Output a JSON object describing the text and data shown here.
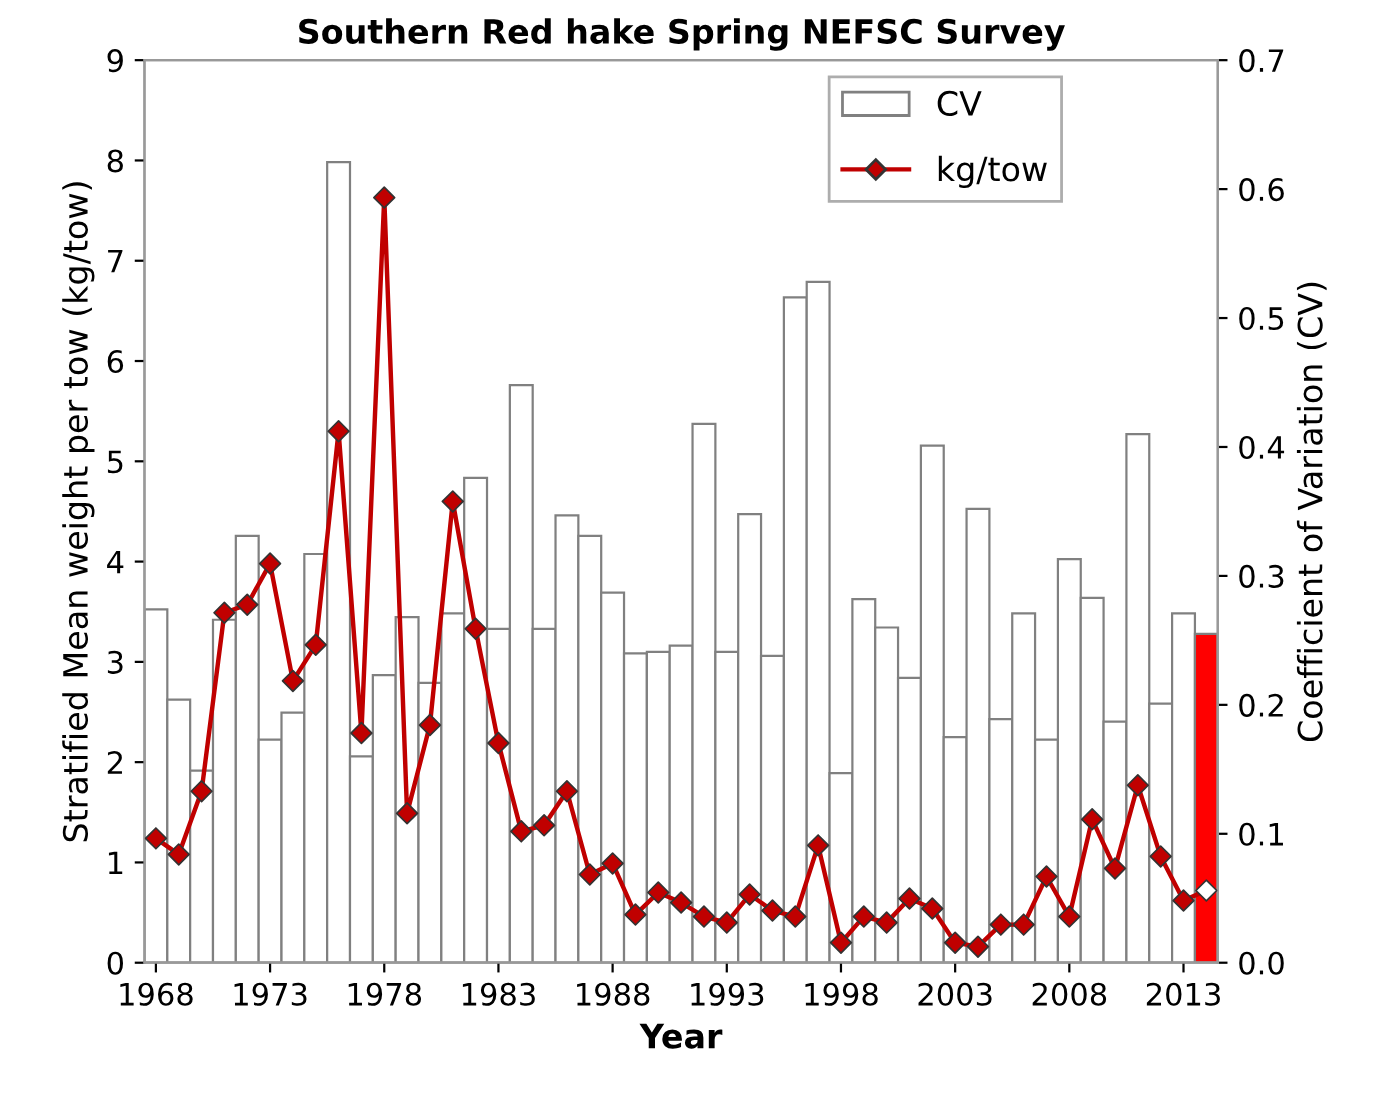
{
  "chart_data": {
    "type": "bar",
    "title": "Southern Red hake Spring NEFSC Survey",
    "xlabel": "Year",
    "ylabel": "Stratified Mean weight per tow (kg/tow)",
    "y2label": "Coefficient of Variation (CV)",
    "x": [
      1968,
      1969,
      1970,
      1971,
      1972,
      1973,
      1974,
      1975,
      1976,
      1977,
      1978,
      1979,
      1980,
      1981,
      1982,
      1983,
      1984,
      1985,
      1986,
      1987,
      1988,
      1989,
      1990,
      1991,
      1992,
      1993,
      1994,
      1995,
      1996,
      1997,
      1998,
      1999,
      2000,
      2001,
      2002,
      2003,
      2004,
      2005,
      2006,
      2007,
      2008,
      2009,
      2010,
      2011,
      2012,
      2013,
      2014
    ],
    "xlim": [
      1967.5,
      2014.5
    ],
    "xticks": [
      1968,
      1973,
      1978,
      1983,
      1988,
      1993,
      1998,
      2003,
      2008,
      2013
    ],
    "ylim": [
      0,
      9
    ],
    "yticks": [
      0,
      1,
      2,
      3,
      4,
      5,
      6,
      7,
      8,
      9
    ],
    "y2lim": [
      0,
      0.7
    ],
    "y2ticks": [
      {
        "value": 0,
        "label": "0.0"
      },
      0.1,
      0.2,
      0.3,
      0.4,
      0.5,
      0.6,
      0.7
    ],
    "series": [
      {
        "name": "CV",
        "axis": "y2",
        "color": "#ffffff",
        "colors": [
          "#ffffff",
          "#ffffff",
          "#ffffff",
          "#ffffff",
          "#ffffff",
          "#ffffff",
          "#ffffff",
          "#ffffff",
          "#ffffff",
          "#ffffff",
          "#ffffff",
          "#ffffff",
          "#ffffff",
          "#ffffff",
          "#ffffff",
          "#ffffff",
          "#ffffff",
          "#ffffff",
          "#ffffff",
          "#ffffff",
          "#ffffff",
          "#ffffff",
          "#ffffff",
          "#ffffff",
          "#ffffff",
          "#ffffff",
          "#ffffff",
          "#ffffff",
          "#ffffff",
          "#ffffff",
          "#ffffff",
          "#ffffff",
          "#ffffff",
          "#ffffff",
          "#ffffff",
          "#ffffff",
          "#ffffff",
          "#ffffff",
          "#ffffff",
          "#ffffff",
          "#ffffff",
          "#ffffff",
          "#ffffff",
          "#ffffff",
          "#ffffff",
          "#ffffff",
          "#ff0000"
        ],
        "values": [
          0.274,
          0.204,
          0.149,
          0.266,
          0.331,
          0.173,
          0.194,
          0.317,
          0.621,
          0.16,
          0.223,
          0.268,
          0.217,
          0.271,
          0.376,
          0.259,
          0.448,
          0.259,
          0.347,
          0.331,
          0.287,
          0.24,
          0.241,
          0.246,
          0.418,
          0.241,
          0.348,
          0.238,
          0.516,
          0.528,
          0.147,
          0.282,
          0.26,
          0.221,
          0.401,
          0.175,
          0.352,
          0.189,
          0.271,
          0.173,
          0.313,
          0.283,
          0.187,
          0.41,
          0.201,
          0.271,
          0.255
        ]
      },
      {
        "name": "kg/tow",
        "type": "line",
        "axis": "y",
        "color": "#c00000",
        "marker": "diamond",
        "line_style": "solid",
        "colors": [
          "#c00000",
          "#c00000",
          "#c00000",
          "#c00000",
          "#c00000",
          "#c00000",
          "#c00000",
          "#c00000",
          "#c00000",
          "#c00000",
          "#c00000",
          "#c00000",
          "#c00000",
          "#c00000",
          "#c00000",
          "#c00000",
          "#c00000",
          "#c00000",
          "#c00000",
          "#c00000",
          "#c00000",
          "#c00000",
          "#c00000",
          "#c00000",
          "#c00000",
          "#c00000",
          "#c00000",
          "#c00000",
          "#c00000",
          "#c00000",
          "#c00000",
          "#c00000",
          "#c00000",
          "#c00000",
          "#c00000",
          "#c00000",
          "#c00000",
          "#c00000",
          "#c00000",
          "#c00000",
          "#c00000",
          "#c00000",
          "#c00000",
          "#c00000",
          "#c00000",
          "#c00000",
          "#ffffff"
        ],
        "values": [
          1.24,
          1.08,
          1.71,
          3.49,
          3.57,
          3.98,
          2.81,
          3.17,
          5.3,
          2.29,
          7.63,
          1.49,
          2.37,
          4.6,
          3.33,
          2.19,
          1.31,
          1.37,
          1.71,
          0.88,
          0.99,
          0.48,
          0.7,
          0.6,
          0.46,
          0.4,
          0.68,
          0.52,
          0.46,
          1.17,
          0.2,
          0.46,
          0.4,
          0.64,
          0.54,
          0.2,
          0.16,
          0.38,
          0.38,
          0.86,
          0.46,
          1.43,
          0.94,
          1.77,
          1.06,
          0.62,
          0.72
        ]
      }
    ],
    "legend": "top right",
    "grid": false
  }
}
